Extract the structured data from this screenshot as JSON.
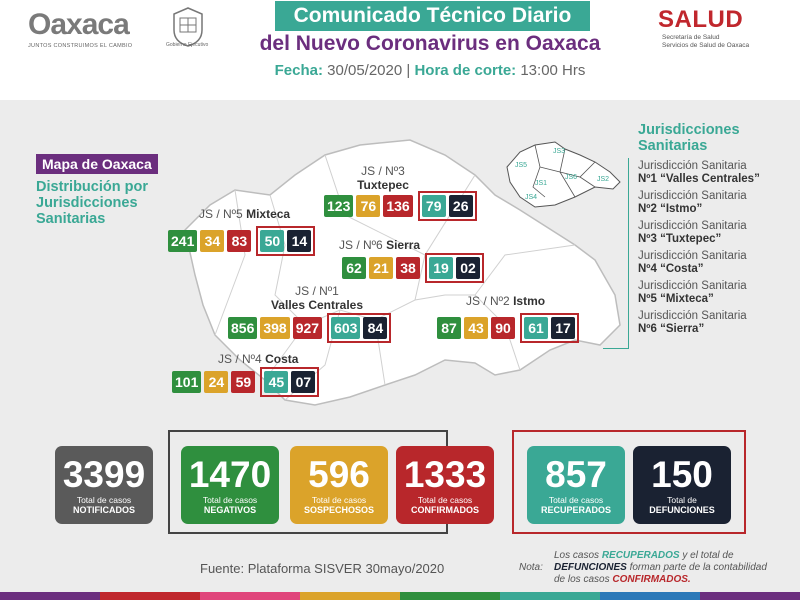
{
  "header": {
    "logo_word": "Oaxaca",
    "logo_tagline": "JUNTOS CONSTRUIMOS EL CAMBIO",
    "seal_label": "Gobierno Ejecutivo",
    "title": "Comunicado Técnico Diario",
    "subtitle": "del Nuevo Coronavirus en Oaxaca",
    "date_label": "Fecha:",
    "date_value": "30/05/2020",
    "separator": "|",
    "cutoff_label": "Hora de corte:",
    "cutoff_value": "13:00 Hrs",
    "salud_word": "SALUD",
    "salud_sub1": "Secretaría de Salud",
    "salud_sub2": "Servicios de Salud de Oaxaca"
  },
  "map": {
    "badge": "Mapa de Oaxaca",
    "description": "Distribución por Jurisdicciones Sanitarias",
    "minimap_labels": [
      "JS5",
      "JS3",
      "JS1",
      "JS6",
      "JS2",
      "JS4"
    ]
  },
  "jurisdictions": [
    {
      "prefix": "JS / Nº3",
      "name": "Tuxtepec",
      "negative": "123",
      "suspect": "76",
      "confirmed": "136",
      "recovered": "79",
      "deaths": "26"
    },
    {
      "prefix": "JS / Nº5",
      "name": "Mixteca",
      "negative": "241",
      "suspect": "34",
      "confirmed": "83",
      "recovered": "50",
      "deaths": "14"
    },
    {
      "prefix": "JS / Nº6",
      "name": "Sierra",
      "negative": "62",
      "suspect": "21",
      "confirmed": "38",
      "recovered": "19",
      "deaths": "02"
    },
    {
      "prefix": "JS / Nº1",
      "name": "Valles Centrales",
      "negative": "856",
      "suspect": "398",
      "confirmed": "927",
      "recovered": "603",
      "deaths": "84"
    },
    {
      "prefix": "JS / Nº2",
      "name": "Istmo",
      "negative": "87",
      "suspect": "43",
      "confirmed": "90",
      "recovered": "61",
      "deaths": "17"
    },
    {
      "prefix": "JS / Nº4",
      "name": "Costa",
      "negative": "101",
      "suspect": "24",
      "confirmed": "59",
      "recovered": "45",
      "deaths": "07"
    }
  ],
  "legend": {
    "title": "Jurisdicciones Sanitarias",
    "items": [
      {
        "line1": "Jurisdicción Sanitaria",
        "line2": "Nº1 “Valles Centrales”"
      },
      {
        "line1": "Jurisdicción Sanitaria",
        "line2": "Nº2 “Istmo”"
      },
      {
        "line1": "Jurisdicción Sanitaria",
        "line2": "Nº3 “Tuxtepec”"
      },
      {
        "line1": "Jurisdicción Sanitaria",
        "line2": "Nº4 “Costa”"
      },
      {
        "line1": "Jurisdicción Sanitaria",
        "line2": "Nº5 “Mixteca”"
      },
      {
        "line1": "Jurisdicción Sanitaria",
        "line2": "Nº6 “Sierra”"
      }
    ]
  },
  "totals": [
    {
      "value": "3399",
      "line1": "Total de casos",
      "line2": "NOTIFICADOS",
      "color": "#5a5a5a"
    },
    {
      "value": "1470",
      "line1": "Total de casos",
      "line2": "NEGATIVOS",
      "color": "#2f8f3e"
    },
    {
      "value": "596",
      "line1": "Total de casos",
      "line2": "SOSPECHOSOS",
      "color": "#dba32a"
    },
    {
      "value": "1333",
      "line1": "Total de casos",
      "line2": "CONFIRMADOS",
      "color": "#b8272b"
    },
    {
      "value": "857",
      "line1": "Total de casos",
      "line2": "RECUPERADOS",
      "color": "#3aa895"
    },
    {
      "value": "150",
      "line1": "Total de",
      "line2": "DEFUNCIONES",
      "color": "#1a2232"
    }
  ],
  "footer": {
    "source": "Fuente: Plataforma SISVER 30mayo/2020",
    "note_label": "Nota:",
    "note_part1": "Los casos",
    "note_recovered": "RECUPERADOS",
    "note_part2": "y el total de",
    "note_deaths": "DEFUNCIONES",
    "note_part3": "forman parte de la contabilidad de los casos",
    "note_confirmed": "CONFIRMADOS."
  },
  "colors": {
    "teal": "#3aa895",
    "purple": "#6b2e7e",
    "red": "#b8272b",
    "green": "#2f8f3e",
    "yellow": "#dba32a",
    "dark": "#1a2232",
    "gray": "#5a5a5a"
  }
}
